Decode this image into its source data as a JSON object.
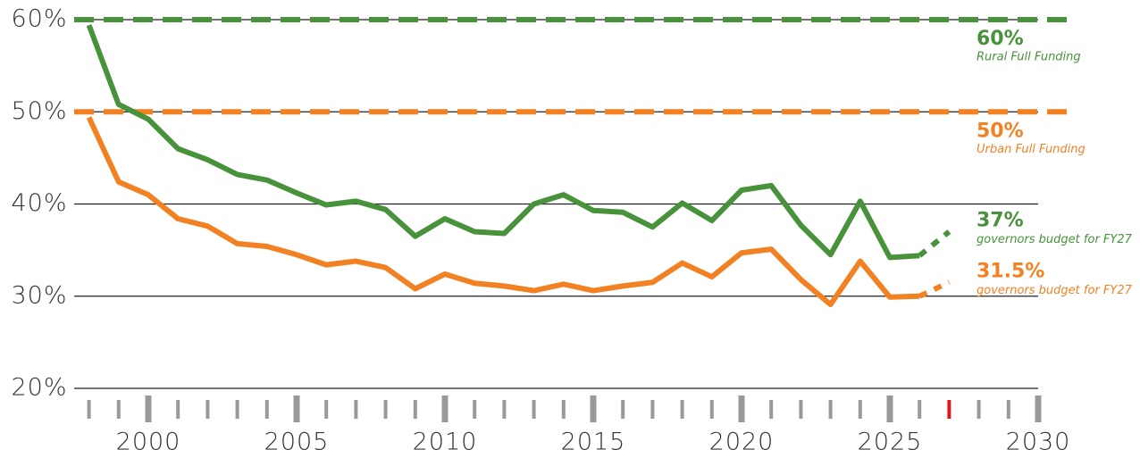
{
  "chart_data": {
    "type": "line",
    "x": [
      1998,
      1999,
      2000,
      2001,
      2002,
      2003,
      2004,
      2005,
      2006,
      2007,
      2008,
      2009,
      2010,
      2011,
      2012,
      2013,
      2014,
      2015,
      2016,
      2017,
      2018,
      2019,
      2020,
      2021,
      2022,
      2023,
      2024,
      2025,
      2026,
      2027
    ],
    "projected_after": 2026,
    "series": [
      {
        "name": "Rural",
        "color": "#47923a",
        "values": [
          59.4,
          50.8,
          49.2,
          46.0,
          44.8,
          43.2,
          42.6,
          41.2,
          39.9,
          40.3,
          39.4,
          36.5,
          38.4,
          37.0,
          36.8,
          40.0,
          41.0,
          39.3,
          39.1,
          37.5,
          40.1,
          38.2,
          41.5,
          42.0,
          37.7,
          34.5,
          40.3,
          34.2,
          34.4,
          37
        ]
      },
      {
        "name": "Urban",
        "color": "#f28123",
        "values": [
          49.4,
          42.4,
          41.0,
          38.4,
          37.6,
          35.7,
          35.4,
          34.5,
          33.4,
          33.8,
          33.1,
          30.8,
          32.4,
          31.4,
          31.1,
          30.6,
          31.3,
          30.6,
          31.1,
          31.5,
          33.6,
          32.1,
          34.7,
          35.1,
          31.8,
          29.1,
          33.8,
          29.9,
          30.0,
          31.5
        ]
      }
    ],
    "reference_lines": [
      {
        "value": 60,
        "color": "#47923a",
        "label": "60%",
        "caption": "Rural Full Funding"
      },
      {
        "value": 50,
        "color": "#f28123",
        "label": "50%",
        "caption": "Urban Full Funding"
      }
    ],
    "annotations": [
      {
        "series": 0,
        "label": "37%",
        "caption": "governors budget for FY27"
      },
      {
        "series": 1,
        "label": "31.5%",
        "caption": "governors budget for FY27"
      }
    ],
    "xlim": [
      1997.5,
      2030
    ],
    "ylim": [
      20,
      60
    ],
    "yticks": [
      {
        "value": 20,
        "label": "20%"
      },
      {
        "value": 30,
        "label": "30%"
      },
      {
        "value": 40,
        "label": "40%"
      },
      {
        "value": 50,
        "label": "50%"
      },
      {
        "value": 60,
        "label": "60%"
      }
    ],
    "xticks": [
      2000,
      2005,
      2010,
      2015,
      2020,
      2025,
      2030
    ],
    "x_minor_ticks": [
      1998,
      1999,
      2001,
      2002,
      2003,
      2004,
      2006,
      2007,
      2008,
      2009,
      2011,
      2012,
      2013,
      2014,
      2016,
      2017,
      2018,
      2019,
      2021,
      2022,
      2023,
      2024,
      2026,
      2027,
      2028,
      2029
    ],
    "highlight_tick": 2027,
    "highlight_color": "#d7191c",
    "grid": true
  }
}
